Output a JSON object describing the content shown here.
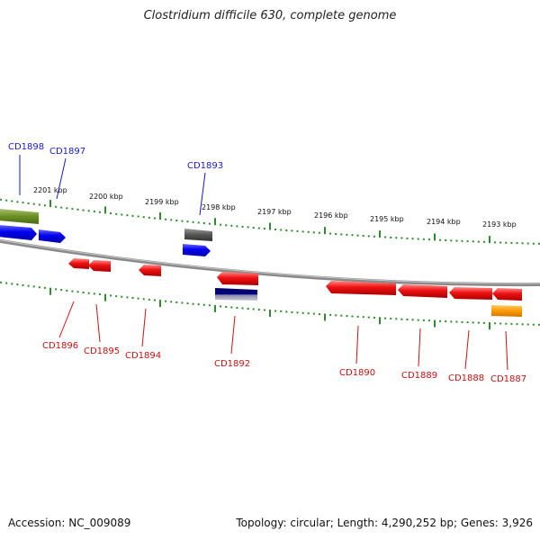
{
  "title": "Clostridium difficile 630, complete genome",
  "footer": {
    "accession": "Accession: NC_009089",
    "summary": "Topology: circular; Length: 4,290,252 bp; Genes: 3,926"
  },
  "colors": {
    "backbone": "#8a8a8a",
    "tick": "#2e8b2e",
    "upper_label": "#1a1acc",
    "lower_label": "#cc1111"
  },
  "ticks": [
    "2201 kbp",
    "2200 kbp",
    "2199 kbp",
    "2198 kbp",
    "2197 kbp",
    "2196 kbp",
    "2195 kbp",
    "2194 kbp",
    "2193 kbp"
  ],
  "upper_labels": [
    {
      "id": "cd1898",
      "text": "CD1898"
    },
    {
      "id": "cd1897",
      "text": "CD1897"
    },
    {
      "id": "cd1893",
      "text": "CD1893"
    }
  ],
  "lower_labels": [
    {
      "id": "cd1896",
      "text": "CD1896"
    },
    {
      "id": "cd1895",
      "text": "CD1895"
    },
    {
      "id": "cd1894",
      "text": "CD1894"
    },
    {
      "id": "cd1892",
      "text": "CD1892"
    },
    {
      "id": "cd1890",
      "text": "CD1890"
    },
    {
      "id": "cd1889",
      "text": "CD1889"
    },
    {
      "id": "cd1888",
      "text": "CD1888"
    },
    {
      "id": "cd1887",
      "text": "CD1887"
    }
  ]
}
